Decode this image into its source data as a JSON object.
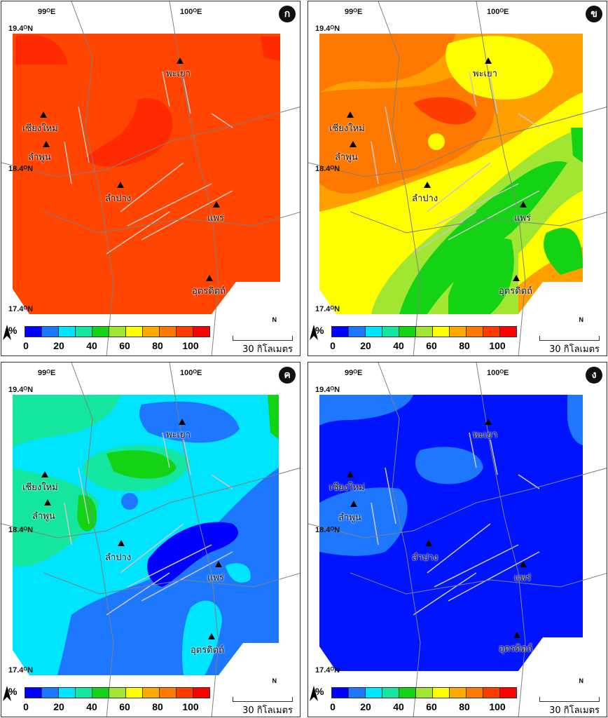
{
  "axis": {
    "lon_left": "99ᴼE",
    "lon_right": "100ᴼE",
    "lat_top": "19.4ᴼN",
    "lat_mid": "18.4ᴼN",
    "lat_bottom": "17.4ᴼN"
  },
  "cities": [
    {
      "name": "พะเยา"
    },
    {
      "name": "เชียงใหม่"
    },
    {
      "name": "ลำพูน"
    },
    {
      "name": "ลำปาง"
    },
    {
      "name": "แพร่"
    },
    {
      "name": "อุตรดิตถ์"
    }
  ],
  "legend": {
    "unit": "%",
    "ticks": [
      "0",
      "20",
      "40",
      "60",
      "80",
      "100"
    ],
    "colors": [
      "#0000ff",
      "#1e78ff",
      "#00e5ff",
      "#14e6a0",
      "#14d214",
      "#a0e632",
      "#ffff00",
      "#ffaa00",
      "#ff7800",
      "#ff3c00",
      "#ff0000"
    ]
  },
  "scale_text": "30 กิโลเมตร",
  "north_label": "N",
  "panels": [
    {
      "tag": "ก",
      "base": "#ff4500"
    },
    {
      "tag": "ข",
      "base": "#ffa000"
    },
    {
      "tag": "ค",
      "base": "#00e5ff"
    },
    {
      "tag": "ง",
      "base": "#0014ff"
    }
  ]
}
